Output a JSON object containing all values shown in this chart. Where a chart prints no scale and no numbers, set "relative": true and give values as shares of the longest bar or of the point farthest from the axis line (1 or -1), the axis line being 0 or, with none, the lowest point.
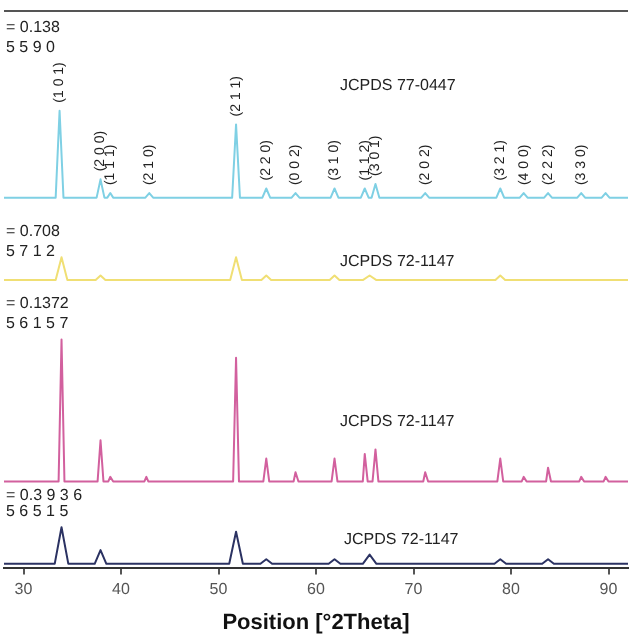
{
  "chart_data": {
    "type": "line",
    "relative": true,
    "xlabel": "Position [°2Theta]",
    "xlim": [
      28,
      92
    ],
    "xticks": [
      30,
      40,
      50,
      60,
      70,
      80,
      90
    ],
    "series": [
      {
        "color": "#7fd0e4",
        "x": [
          28,
          33.3,
          33.7,
          34.1,
          37.5,
          37.9,
          38.3,
          38.6,
          38.9,
          39.2,
          42.5,
          42.9,
          43.3,
          51.4,
          51.8,
          52.2,
          54.5,
          54.9,
          55.3,
          57.5,
          57.9,
          58.3,
          61.5,
          61.9,
          62.3,
          64.6,
          65.0,
          65.4,
          65.7,
          66.1,
          66.5,
          70.8,
          71.2,
          71.6,
          78.5,
          78.9,
          79.3,
          80.9,
          81.3,
          81.7,
          83.4,
          83.8,
          84.2,
          86.8,
          87.2,
          87.6,
          89.3,
          89.7,
          90.1,
          92
        ],
        "values": [
          0.81,
          0.81,
          1.0,
          0.81,
          0.81,
          0.85,
          0.81,
          0.81,
          0.82,
          0.81,
          0.81,
          0.82,
          0.81,
          0.81,
          0.97,
          0.81,
          0.81,
          0.83,
          0.81,
          0.81,
          0.82,
          0.81,
          0.81,
          0.83,
          0.81,
          0.81,
          0.83,
          0.81,
          0.81,
          0.84,
          0.81,
          0.81,
          0.82,
          0.81,
          0.81,
          0.83,
          0.81,
          0.81,
          0.82,
          0.81,
          0.81,
          0.82,
          0.81,
          0.81,
          0.82,
          0.81,
          0.81,
          0.82,
          0.81,
          0.81
        ]
      },
      {
        "color": "#f0df74",
        "x": [
          28,
          33.3,
          33.9,
          34.5,
          37.4,
          37.9,
          38.4,
          51.2,
          51.8,
          52.4,
          54.4,
          54.9,
          55.4,
          61.4,
          61.9,
          62.4,
          64.8,
          65.5,
          66.2,
          78.4,
          78.9,
          79.4,
          92
        ],
        "values": [
          0.63,
          0.63,
          0.68,
          0.63,
          0.63,
          0.64,
          0.63,
          0.63,
          0.68,
          0.63,
          0.63,
          0.64,
          0.63,
          0.63,
          0.64,
          0.63,
          0.63,
          0.64,
          0.63,
          0.63,
          0.64,
          0.63,
          0.63
        ]
      },
      {
        "color": "#d2609e",
        "x": [
          28,
          33.6,
          33.9,
          34.2,
          37.6,
          37.9,
          38.2,
          38.7,
          38.9,
          39.2,
          42.4,
          42.6,
          42.8,
          51.5,
          51.8,
          52.1,
          54.6,
          54.9,
          55.2,
          57.7,
          57.9,
          58.2,
          61.6,
          61.9,
          62.2,
          64.8,
          65.0,
          65.3,
          65.8,
          66.1,
          66.4,
          71.0,
          71.2,
          71.5,
          78.6,
          78.9,
          79.2,
          81.1,
          81.3,
          81.6,
          83.6,
          83.8,
          84.1,
          87.0,
          87.2,
          87.5,
          89.5,
          89.7,
          90.0,
          92
        ],
        "values": [
          0.19,
          0.19,
          0.5,
          0.19,
          0.19,
          0.28,
          0.19,
          0.19,
          0.2,
          0.19,
          0.19,
          0.2,
          0.19,
          0.19,
          0.46,
          0.19,
          0.19,
          0.24,
          0.19,
          0.19,
          0.21,
          0.19,
          0.19,
          0.24,
          0.19,
          0.19,
          0.25,
          0.19,
          0.19,
          0.26,
          0.19,
          0.19,
          0.21,
          0.19,
          0.19,
          0.24,
          0.19,
          0.19,
          0.2,
          0.19,
          0.19,
          0.22,
          0.19,
          0.19,
          0.2,
          0.19,
          0.19,
          0.2,
          0.19,
          0.19
        ]
      },
      {
        "color": "#2b3262",
        "x": [
          28,
          33.2,
          33.9,
          34.6,
          37.3,
          37.9,
          38.5,
          51.1,
          51.8,
          52.5,
          54.3,
          54.9,
          55.5,
          61.3,
          61.9,
          62.5,
          64.8,
          65.5,
          66.2,
          78.3,
          78.9,
          79.5,
          83.2,
          83.8,
          84.4,
          92
        ],
        "values": [
          0.01,
          0.01,
          0.09,
          0.01,
          0.01,
          0.04,
          0.01,
          0.01,
          0.08,
          0.01,
          0.01,
          0.02,
          0.01,
          0.01,
          0.02,
          0.01,
          0.01,
          0.03,
          0.01,
          0.01,
          0.02,
          0.01,
          0.01,
          0.02,
          0.01,
          0.01
        ]
      }
    ],
    "annotations": [
      "= 0.138",
      "5 5 9 0",
      "JCPDS 77-0447",
      "= 0.708",
      "5 7 1 2",
      "JCPDS 72-1147",
      "= 0.1372",
      "5 6 1 5 7",
      "JCPDS 72-1147",
      "= 0.3 9 3 6",
      "5 6 5 1 5",
      "JCPDS 72-1147",
      {
        "text": "(1 0 1)",
        "x": 33.7,
        "y": 1.0
      },
      {
        "text": "(2 0 0)",
        "x": 37.9,
        "y": 0.85
      },
      {
        "text": "(1 1 1)",
        "x": 38.9,
        "y": 0.82
      },
      {
        "text": "(2 1 0)",
        "x": 42.9,
        "y": 0.82
      },
      {
        "text": "(2 1 1)",
        "x": 51.8,
        "y": 0.97
      },
      {
        "text": "(2 2 0)",
        "x": 54.9,
        "y": 0.83
      },
      {
        "text": "(0 0 2)",
        "x": 57.9,
        "y": 0.82
      },
      {
        "text": "(3 1 0)",
        "x": 61.9,
        "y": 0.83
      },
      {
        "text": "(1 1 2)",
        "x": 65.0,
        "y": 0.83
      },
      {
        "text": "(3 0 1)",
        "x": 66.1,
        "y": 0.84
      },
      {
        "text": "(2 0 2)",
        "x": 71.2,
        "y": 0.82
      },
      {
        "text": "(3 2 1)",
        "x": 78.9,
        "y": 0.83
      },
      {
        "text": "(4 0 0)",
        "x": 81.3,
        "y": 0.82
      },
      {
        "text": "(2 2 2)",
        "x": 83.8,
        "y": 0.82
      },
      {
        "text": "(3 3 0)",
        "x": 87.2,
        "y": 0.82
      }
    ]
  }
}
